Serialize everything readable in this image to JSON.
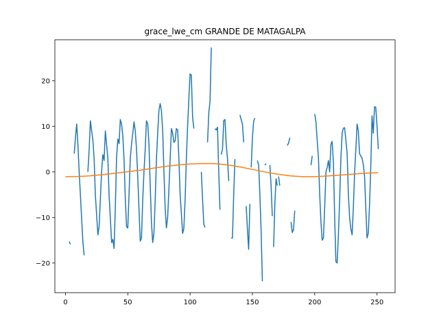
{
  "chart_data": {
    "type": "line",
    "title": "grace_lwe_cm GRANDE DE MATAGALPA",
    "xlabel": "",
    "ylabel": "",
    "xlim": [
      -8.5,
      264.5
    ],
    "ylim": [
      -26.5,
      29.0
    ],
    "xticks": [
      0,
      50,
      100,
      150,
      200,
      250
    ],
    "yticks": [
      -20,
      -10,
      0,
      10,
      20
    ],
    "grid": false,
    "legend": "none",
    "colors": {
      "observed": "#1f77b4",
      "seasonal": "#ff7f0e"
    },
    "series": [
      {
        "key": "observed",
        "points": [
          [
            3,
            -15.3
          ],
          [
            4,
            -15.9
          ],
          null,
          [
            7,
            4.0
          ],
          [
            8,
            7.5
          ],
          [
            9,
            10.5
          ],
          [
            10,
            6.0
          ],
          [
            11,
            0.0
          ],
          [
            12,
            -5.0
          ],
          [
            13,
            -10.5
          ],
          [
            14,
            -15.5
          ],
          [
            15,
            -18.3
          ],
          null,
          [
            18,
            0.0
          ],
          [
            19,
            5.0
          ],
          [
            20,
            11.2
          ],
          [
            21,
            9.0
          ],
          [
            22,
            7.0
          ],
          [
            23,
            3.0
          ],
          [
            24,
            -5.0
          ],
          [
            25,
            -9.5
          ],
          [
            26,
            -13.8
          ],
          [
            27,
            -12.0
          ],
          [
            28,
            -6.0
          ],
          [
            29,
            0.0
          ],
          [
            30,
            3.8
          ],
          [
            31,
            2.5
          ],
          [
            32,
            9.0
          ],
          [
            33,
            6.0
          ],
          [
            34,
            3.0
          ],
          [
            35,
            -5.0
          ],
          [
            36,
            -10.0
          ],
          [
            37,
            -15.5
          ],
          [
            38,
            -14.8
          ],
          [
            39,
            -16.8
          ],
          [
            40,
            -8.0
          ],
          [
            41,
            3.0
          ],
          [
            42,
            7.2
          ],
          [
            43,
            6.2
          ],
          [
            44,
            11.5
          ],
          [
            45,
            10.5
          ],
          [
            46,
            8.0
          ],
          [
            47,
            3.0
          ],
          [
            48,
            -6.0
          ],
          [
            49,
            -12.0
          ],
          [
            50,
            -12.3
          ],
          [
            51,
            -5.0
          ],
          [
            52,
            3.0
          ],
          [
            53,
            6.0
          ],
          [
            54,
            8.5
          ],
          [
            55,
            11.0
          ],
          [
            56,
            9.0
          ],
          [
            57,
            5.0
          ],
          [
            58,
            -1.0
          ],
          [
            59,
            -8.0
          ],
          [
            60,
            -15.2
          ],
          [
            61,
            -14.5
          ],
          [
            62,
            -6.0
          ],
          [
            63,
            0.0
          ],
          [
            64,
            5.0
          ],
          [
            65,
            11.2
          ],
          [
            66,
            10.5
          ],
          [
            67,
            6.0
          ],
          [
            68,
            -3.0
          ],
          [
            69,
            -11.0
          ],
          [
            70,
            -15.5
          ],
          [
            71,
            -13.5
          ],
          [
            72,
            -6.0
          ],
          [
            73,
            3.0
          ],
          [
            74,
            8.5
          ],
          [
            75,
            13.5
          ],
          [
            76,
            15.0
          ],
          [
            77,
            13.5
          ],
          [
            78,
            9.0
          ],
          [
            79,
            0.0
          ],
          [
            80,
            -8.0
          ],
          [
            81,
            -12.3
          ],
          [
            82,
            -10.0
          ],
          [
            83,
            -4.0
          ],
          [
            84,
            3.0
          ],
          [
            85,
            9.5
          ],
          [
            86,
            8.5
          ],
          [
            87,
            6.5
          ],
          [
            88,
            6.8
          ],
          [
            89,
            9.5
          ],
          [
            90,
            9.2
          ],
          [
            91,
            3.0
          ],
          [
            92,
            -5.0
          ],
          [
            93,
            -9.0
          ],
          [
            94,
            -13.5
          ],
          [
            95,
            -12.5
          ],
          [
            96,
            -6.0
          ],
          [
            97,
            3.0
          ],
          [
            98,
            10.0
          ],
          [
            99,
            16.0
          ],
          [
            100,
            21.5
          ],
          [
            101,
            21.3
          ],
          [
            102,
            12.0
          ],
          [
            103,
            9.5
          ],
          null,
          [
            109,
            0.0
          ],
          [
            110,
            -6.0
          ],
          [
            111,
            -11.5
          ],
          [
            112,
            -12.2
          ],
          null,
          [
            114,
            6.5
          ],
          [
            115,
            13.0
          ],
          [
            116,
            15.5
          ],
          [
            117,
            27.3
          ],
          null,
          [
            120,
            9.5
          ],
          [
            121,
            9.2
          ],
          [
            122,
            9.8
          ],
          [
            123,
            0.0
          ],
          [
            124,
            -8.3
          ],
          null,
          [
            125,
            3.8
          ],
          [
            126,
            5.0
          ],
          [
            127,
            11.3
          ],
          [
            128,
            11.5
          ],
          [
            129,
            6.0
          ],
          [
            130,
            3.0
          ],
          [
            131,
            -2.0
          ],
          null,
          [
            133,
            -14.5
          ],
          [
            134,
            -14.5
          ],
          [
            135,
            -5.0
          ],
          [
            136,
            2.8
          ],
          null,
          [
            140,
            12.5
          ],
          [
            141,
            11.5
          ],
          [
            142,
            10.5
          ],
          [
            143,
            6.5
          ],
          null,
          [
            145,
            -7.5
          ],
          [
            146,
            -12.5
          ],
          [
            147,
            -17.0
          ],
          [
            148,
            -7.0
          ],
          null,
          [
            149,
            1.0
          ],
          [
            150,
            7.5
          ],
          [
            151,
            11.2
          ],
          [
            152,
            11.8
          ],
          null,
          [
            154,
            2.5
          ],
          [
            155,
            1.5
          ],
          [
            156,
            -5.0
          ],
          [
            157,
            -13.0
          ],
          [
            158,
            -24.0
          ],
          null,
          [
            160,
            1.5
          ],
          [
            161,
            1.8
          ],
          null,
          [
            164,
            1.5
          ],
          [
            165,
            -3.0
          ],
          [
            166,
            -9.7
          ],
          null,
          [
            167,
            -16.5
          ],
          [
            168,
            -7.0
          ],
          [
            169,
            -1.5
          ],
          [
            170,
            -3.0
          ],
          null,
          [
            171,
            -1.0
          ],
          [
            172,
            -3.0
          ],
          null,
          [
            178,
            5.8
          ],
          [
            179,
            6.3
          ],
          [
            180,
            7.5
          ],
          null,
          [
            181,
            -11.0
          ],
          [
            182,
            -13.3
          ],
          [
            183,
            -12.7
          ],
          [
            184,
            -8.5
          ],
          null,
          [
            197,
            1.5
          ],
          [
            198,
            3.5
          ],
          null,
          [
            200,
            12.7
          ],
          [
            201,
            11.0
          ],
          [
            202,
            7.0
          ],
          [
            203,
            3.0
          ],
          [
            204,
            -5.0
          ],
          [
            205,
            -11.0
          ],
          [
            206,
            -15.0
          ],
          [
            207,
            -14.5
          ],
          [
            208,
            -8.0
          ],
          [
            209,
            0.0
          ],
          [
            210,
            1.0
          ],
          [
            211,
            2.5
          ],
          [
            212,
            0.0
          ],
          [
            213,
            6.0
          ],
          [
            214,
            6.7
          ],
          [
            215,
            2.0
          ],
          [
            216,
            -10.0
          ],
          [
            217,
            -19.7
          ],
          [
            218,
            -20.0
          ],
          [
            219,
            -14.0
          ],
          [
            220,
            -6.0
          ],
          [
            221,
            3.0
          ],
          [
            222,
            8.5
          ],
          [
            223,
            9.6
          ],
          [
            224,
            9.7
          ],
          [
            225,
            7.0
          ],
          [
            226,
            4.0
          ],
          [
            227,
            -5.0
          ],
          [
            228,
            -10.0
          ],
          [
            229,
            -12.5
          ],
          [
            230,
            -13.8
          ],
          [
            231,
            -8.0
          ],
          [
            232,
            0.0
          ],
          [
            233,
            5.0
          ],
          [
            234,
            10.5
          ],
          [
            235,
            9.0
          ],
          [
            236,
            4.0
          ],
          [
            237,
            3.5
          ],
          [
            238,
            3.0
          ],
          [
            239,
            1.5
          ],
          [
            240,
            -1.0
          ],
          [
            241,
            -8.0
          ],
          [
            242,
            -14.5
          ],
          [
            243,
            -13.5
          ],
          [
            244,
            -7.0
          ],
          [
            245,
            1.5
          ],
          [
            246,
            12.3
          ],
          [
            247,
            8.5
          ],
          [
            248,
            14.3
          ],
          [
            249,
            14.2
          ],
          [
            250,
            10.0
          ],
          [
            251,
            5.0
          ]
        ]
      },
      {
        "key": "seasonal",
        "points": [
          [
            0,
            -1.05
          ],
          [
            10,
            -1.0
          ],
          [
            20,
            -0.85
          ],
          [
            30,
            -0.6
          ],
          [
            40,
            -0.3
          ],
          [
            50,
            0.05
          ],
          [
            60,
            0.4
          ],
          [
            70,
            0.8
          ],
          [
            80,
            1.2
          ],
          [
            90,
            1.5
          ],
          [
            100,
            1.75
          ],
          [
            110,
            1.85
          ],
          [
            120,
            1.8
          ],
          [
            130,
            1.55
          ],
          [
            140,
            1.1
          ],
          [
            150,
            0.55
          ],
          [
            160,
            0.0
          ],
          [
            170,
            -0.5
          ],
          [
            180,
            -0.85
          ],
          [
            190,
            -1.05
          ],
          [
            200,
            -1.05
          ],
          [
            210,
            -0.9
          ],
          [
            220,
            -0.7
          ],
          [
            230,
            -0.5
          ],
          [
            240,
            -0.3
          ],
          [
            250,
            -0.2
          ],
          [
            251,
            -0.2
          ]
        ]
      }
    ]
  }
}
